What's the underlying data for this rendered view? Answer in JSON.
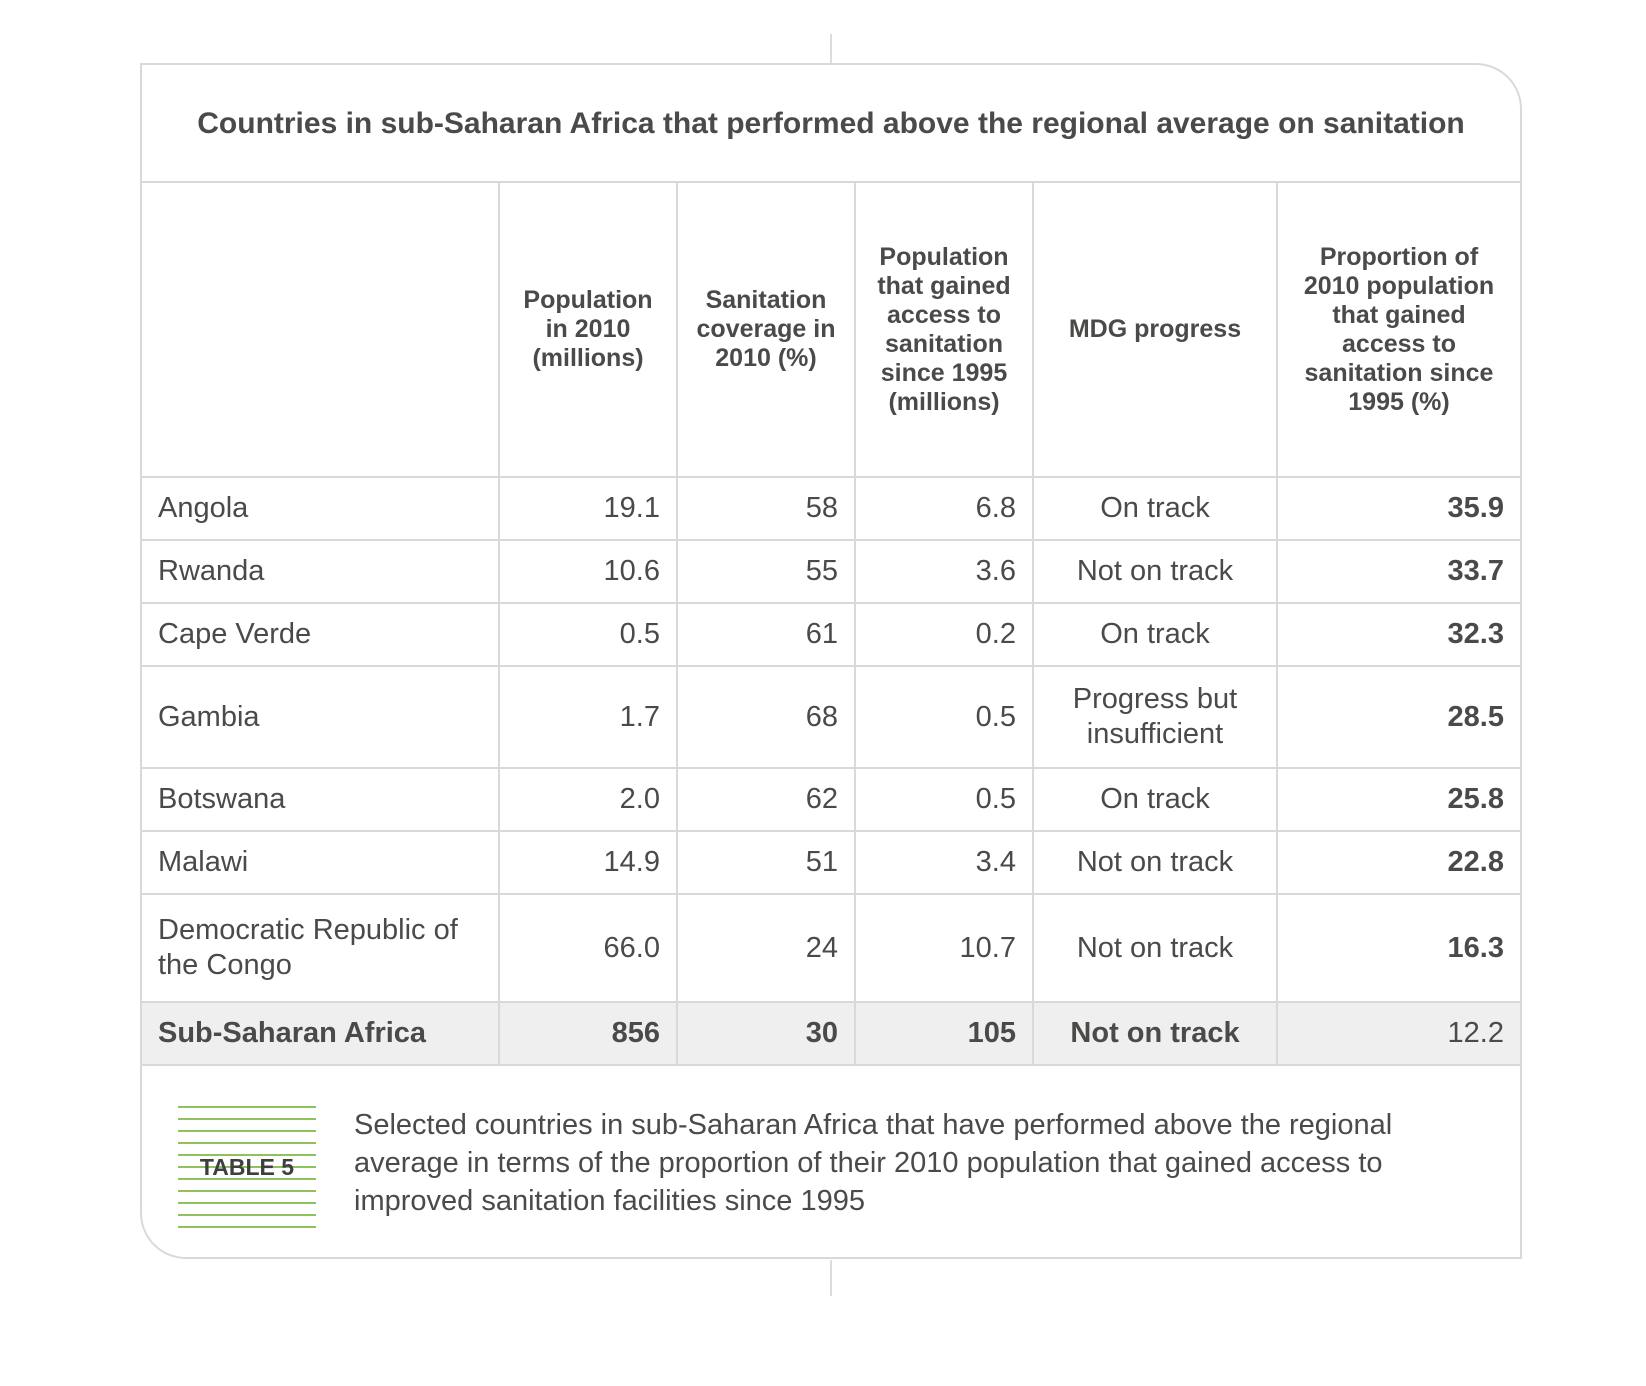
{
  "title": "Countries in sub-Saharan Africa that performed above the regional average on sanitation",
  "columns": [
    "",
    "Population in 2010 (millions)",
    "Sanitation coverage in 2010 (%)",
    "Population that gained access to sanitation since 1995 (millions)",
    "MDG progress",
    "Proportion of 2010 population that gained access to sanitation since 1995 (%)"
  ],
  "rows": [
    {
      "country": "Angola",
      "population_2010": "19.1",
      "coverage_2010": "58",
      "gained_access": "6.8",
      "mdg_progress": "On track",
      "proportion": "35.9"
    },
    {
      "country": "Rwanda",
      "population_2010": "10.6",
      "coverage_2010": "55",
      "gained_access": "3.6",
      "mdg_progress": "Not on track",
      "proportion": "33.7"
    },
    {
      "country": "Cape Verde",
      "population_2010": "0.5",
      "coverage_2010": "61",
      "gained_access": "0.2",
      "mdg_progress": "On track",
      "proportion": "32.3"
    },
    {
      "country": "Gambia",
      "population_2010": "1.7",
      "coverage_2010": "68",
      "gained_access": "0.5",
      "mdg_progress": "Progress but insufficient",
      "proportion": "28.5"
    },
    {
      "country": "Botswana",
      "population_2010": "2.0",
      "coverage_2010": "62",
      "gained_access": "0.5",
      "mdg_progress": "On track",
      "proportion": "25.8"
    },
    {
      "country": "Malawi",
      "population_2010": "14.9",
      "coverage_2010": "51",
      "gained_access": "3.4",
      "mdg_progress": "Not on track",
      "proportion": "22.8"
    },
    {
      "country": "Democratic Republic of the Congo",
      "population_2010": "66.0",
      "coverage_2010": "24",
      "gained_access": "10.7",
      "mdg_progress": "Not on track",
      "proportion": "16.3"
    }
  ],
  "total": {
    "country": "Sub-Saharan Africa",
    "population_2010": "856",
    "coverage_2010": "30",
    "gained_access": "105",
    "mdg_progress": "Not on track",
    "proportion": "12.2"
  },
  "caption": {
    "badge": "TABLE 5",
    "text": "Selected countries in sub-Saharan Africa that have performed above the regional average in terms of the proportion of their 2010 population that gained access to improved sanitation facilities since 1995"
  },
  "colors": {
    "border": "#d9d9d9",
    "text": "#4a4a48",
    "total_row_bg": "#efefef",
    "badge_lines": "#8fc15d"
  }
}
